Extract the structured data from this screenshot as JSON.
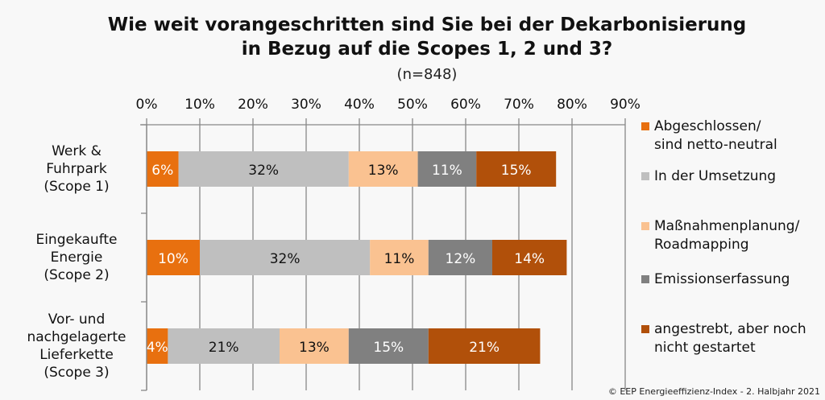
{
  "chart_data": {
    "type": "bar",
    "orientation": "horizontal",
    "stacked": true,
    "title": "Wie weit vorangeschritten sind Sie bei der Dekarbonisierung",
    "title_line2": "in Bezug auf die Scopes 1, 2 und 3?",
    "subtitle": "(n=848)",
    "xlim": [
      0,
      90
    ],
    "x_ticks": [
      "0%",
      "10%",
      "20%",
      "30%",
      "40%",
      "50%",
      "60%",
      "70%",
      "80%",
      "90%"
    ],
    "x_tick_values": [
      0,
      10,
      20,
      30,
      40,
      50,
      60,
      70,
      80,
      90
    ],
    "grid": true,
    "legend_position": "right",
    "categories": [
      "Werk &\nFuhrpark\n(Scope 1)",
      "Eingekaufte\nEnergie\n(Scope 2)",
      "Vor- und\nnachgelagerte\nLieferkette\n(Scope 3)"
    ],
    "series": [
      {
        "name": "Abgeschlossen/\nsind netto-neutral",
        "color": "#e8700f",
        "label_color": "#ffffff",
        "values": [
          6,
          10,
          4
        ]
      },
      {
        "name": "In der Umsetzung",
        "color": "#bfbfbf",
        "label_color": "#111111",
        "values": [
          32,
          32,
          21
        ]
      },
      {
        "name": "Maßnahmenplanung/\nRoadmapping",
        "color": "#fac291",
        "label_color": "#111111",
        "values": [
          13,
          11,
          13
        ]
      },
      {
        "name": "Emissionserfassung",
        "color": "#808080",
        "label_color": "#ffffff",
        "values": [
          11,
          12,
          15
        ]
      },
      {
        "name": "angestrebt, aber noch\nnicht gestartet",
        "color": "#b1500a",
        "label_color": "#ffffff",
        "values": [
          15,
          14,
          21
        ]
      }
    ]
  },
  "footer": "© EEP Energieeffizienz-Index - 2. Halbjahr 2021"
}
